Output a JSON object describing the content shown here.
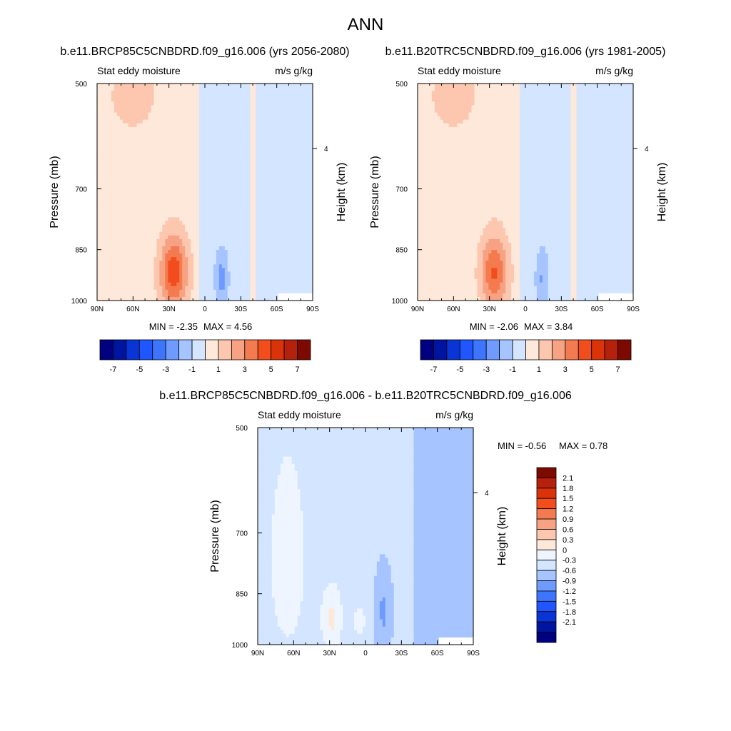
{
  "figure": {
    "title": "ANN"
  },
  "colors": {
    "levels_full": [
      "#000080",
      "#00159f",
      "#0a35d6",
      "#1f56ff",
      "#3d75ff",
      "#6f9bff",
      "#a6c4ff",
      "#d3e5ff",
      "#fde8d9",
      "#fcc7ae",
      "#f6a283",
      "#f47a4f",
      "#f24d1d",
      "#da3209",
      "#b5210a",
      "#7d0a00"
    ],
    "levels_diff": [
      "#000080",
      "#00159f",
      "#0a35d6",
      "#1f56ff",
      "#3d75ff",
      "#6f9bff",
      "#a6c4ff",
      "#d3e5ff",
      "#eef5ff",
      "#fde8d9",
      "#fcc7ae",
      "#f6a283",
      "#f47a4f",
      "#f24d1d",
      "#da3209",
      "#b5210a",
      "#7d0a00"
    ]
  },
  "chart_data": [
    {
      "type": "contour",
      "title": "b.e11.BRCP85C5CNBDRD.f09_g16.006 (yrs 2056-2080)",
      "left_label": "Stat eddy moisture",
      "right_label": "m/s g/kg",
      "xlabel_ticks": [
        "90N",
        "60N",
        "30N",
        "0",
        "30S",
        "60S",
        "90S"
      ],
      "x_values": [
        90,
        60,
        30,
        0,
        -30,
        -60,
        -90
      ],
      "ylabel": "Pressure (mb)",
      "y_ticks": [
        500,
        700,
        850,
        1000
      ],
      "ylim": [
        1000,
        500
      ],
      "y_scale": "log",
      "right_axis_label": "Height (km)",
      "right_axis_ticks": [
        "4"
      ],
      "min_text": "MIN =  -2.35",
      "max_text": "MAX =   4.56",
      "min": -2.35,
      "max": 4.56,
      "colorbar_levels": [
        -7,
        -6,
        -5,
        -4,
        -3,
        -2,
        -1,
        0,
        1,
        2,
        3,
        4,
        5,
        6,
        7
      ],
      "colorbar_tick_labels": [
        "-7",
        "-5",
        "-3",
        "-1",
        "1",
        "3",
        "5",
        "7"
      ]
    },
    {
      "type": "contour",
      "title": "b.e11.B20TRC5CNBDRD.f09_g16.006 (yrs 1981-2005)",
      "left_label": "Stat eddy moisture",
      "right_label": "m/s g/kg",
      "xlabel_ticks": [
        "90N",
        "60N",
        "30N",
        "0",
        "30S",
        "60S",
        "90S"
      ],
      "x_values": [
        90,
        60,
        30,
        0,
        -30,
        -60,
        -90
      ],
      "ylabel": "Pressure (mb)",
      "y_ticks": [
        500,
        700,
        850,
        1000
      ],
      "ylim": [
        1000,
        500
      ],
      "y_scale": "log",
      "right_axis_label": "Height (km)",
      "right_axis_ticks": [
        "4"
      ],
      "min_text": "MIN =  -2.06",
      "max_text": "MAX =   3.84",
      "min": -2.06,
      "max": 3.84,
      "colorbar_levels": [
        -7,
        -6,
        -5,
        -4,
        -3,
        -2,
        -1,
        0,
        1,
        2,
        3,
        4,
        5,
        6,
        7
      ],
      "colorbar_tick_labels": [
        "-7",
        "-5",
        "-3",
        "-1",
        "1",
        "3",
        "5",
        "7"
      ]
    },
    {
      "type": "contour",
      "title": "b.e11.BRCP85C5CNBDRD.f09_g16.006 - b.e11.B20TRC5CNBDRD.f09_g16.006",
      "left_label": "Stat eddy moisture",
      "right_label": "m/s g/kg",
      "xlabel_ticks": [
        "90N",
        "60N",
        "30N",
        "0",
        "30S",
        "60S",
        "90S"
      ],
      "x_values": [
        90,
        60,
        30,
        0,
        -30,
        -60,
        -90
      ],
      "ylabel": "Pressure (mb)",
      "y_ticks": [
        500,
        700,
        850,
        1000
      ],
      "ylim": [
        1000,
        500
      ],
      "y_scale": "log",
      "right_axis_label": "Height (km)",
      "right_axis_ticks": [
        "4"
      ],
      "min_text": "MIN =  -0.56",
      "max_text": "MAX =   0.78",
      "min": -0.56,
      "max": 0.78,
      "colorbar_levels": [
        -2.1,
        -1.8,
        -1.5,
        -1.2,
        -0.9,
        -0.6,
        -0.3,
        0,
        0.3,
        0.6,
        0.9,
        1.2,
        1.5,
        1.8,
        2.1
      ],
      "colorbar_tick_labels": [
        "2.1",
        "1.8",
        "1.5",
        "1.2",
        "0.9",
        "0.6",
        "0.3",
        "0",
        "-0.3",
        "-0.6",
        "-0.9",
        "-1.2",
        "-1.5",
        "-1.8",
        "-2.1"
      ]
    }
  ]
}
